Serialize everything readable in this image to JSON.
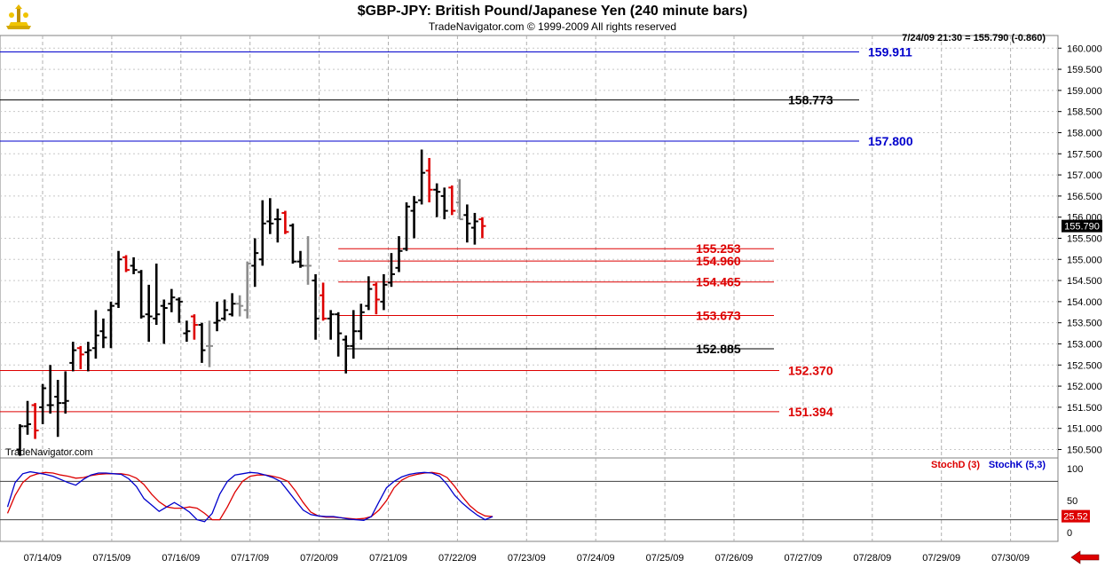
{
  "header": {
    "title": "$GBP-JPY:  British Pound/Japanese Yen  (240 minute bars)",
    "subtitle": "TradeNavigator.com © 1999-2009 All rights reserved",
    "last_quote": "7/24/09 21:30 = 155.790 (-0.860)",
    "watermark": "TradeNavigator.com"
  },
  "colors": {
    "up_bar": "#000000",
    "down_bar": "#dd0000",
    "neutral_bar": "#8c8c8c",
    "blue_level": "#0000cc",
    "red_level": "#dd0000",
    "stoch_d": "#dd0000",
    "stoch_k": "#0000cc"
  },
  "chart_data": [
    {
      "type": "ohlc",
      "title": "$GBP-JPY:  British Pound/Japanese Yen  (240 minute bars)",
      "x_tick_labels": [
        "07/14/09",
        "07/15/09",
        "07/16/09",
        "07/17/09",
        "07/20/09",
        "07/21/09",
        "07/22/09",
        "07/23/09",
        "07/24/09",
        "07/25/09",
        "07/26/09",
        "07/27/09",
        "07/28/09",
        "07/29/09",
        "07/30/09"
      ],
      "ylim": [
        150.3,
        160.3
      ],
      "y_ticks": [
        "150.500",
        "151.000",
        "151.500",
        "152.000",
        "152.500",
        "153.000",
        "153.500",
        "154.000",
        "154.500",
        "155.000",
        "155.500",
        "156.000",
        "156.500",
        "157.000",
        "157.500",
        "158.000",
        "158.500",
        "159.000",
        "159.500",
        "160.000"
      ],
      "last_price_label": "155.790",
      "grid": true,
      "bars": [
        {
          "x": 0,
          "o": 150.5,
          "h": 151.1,
          "l": 150.35,
          "c": 151.05,
          "t": "u"
        },
        {
          "x": 1,
          "o": 151.05,
          "h": 151.65,
          "l": 150.85,
          "c": 151.1,
          "t": "u"
        },
        {
          "x": 2,
          "o": 151.55,
          "h": 151.6,
          "l": 150.75,
          "c": 150.95,
          "t": "d"
        },
        {
          "x": 3,
          "o": 151.5,
          "h": 152.05,
          "l": 151.1,
          "c": 151.95,
          "t": "u"
        },
        {
          "x": 4,
          "o": 151.55,
          "h": 152.5,
          "l": 151.35,
          "c": 151.55,
          "t": "u"
        },
        {
          "x": 5,
          "o": 151.75,
          "h": 152.15,
          "l": 150.8,
          "c": 151.6,
          "t": "u"
        },
        {
          "x": 6,
          "o": 151.6,
          "h": 152.35,
          "l": 151.35,
          "c": 151.65,
          "t": "u"
        },
        {
          "x": 7,
          "o": 152.55,
          "h": 153.05,
          "l": 152.35,
          "c": 152.85,
          "t": "u"
        },
        {
          "x": 8,
          "o": 152.9,
          "h": 152.95,
          "l": 152.4,
          "c": 152.75,
          "t": "d"
        },
        {
          "x": 9,
          "o": 152.8,
          "h": 153.05,
          "l": 152.35,
          "c": 152.85,
          "t": "u"
        },
        {
          "x": 10,
          "o": 152.9,
          "h": 153.8,
          "l": 152.65,
          "c": 153.2,
          "t": "u"
        },
        {
          "x": 11,
          "o": 153.3,
          "h": 153.6,
          "l": 152.9,
          "c": 153.15,
          "t": "u"
        },
        {
          "x": 12,
          "o": 153.8,
          "h": 154.0,
          "l": 152.9,
          "c": 153.9,
          "t": "u"
        },
        {
          "x": 13,
          "o": 153.95,
          "h": 155.2,
          "l": 153.85,
          "c": 155.0,
          "t": "u"
        },
        {
          "x": 14,
          "o": 155.05,
          "h": 155.1,
          "l": 154.7,
          "c": 154.75,
          "t": "d"
        },
        {
          "x": 15,
          "o": 154.85,
          "h": 155.05,
          "l": 154.65,
          "c": 154.75,
          "t": "u"
        },
        {
          "x": 16,
          "o": 154.7,
          "h": 154.75,
          "l": 153.6,
          "c": 153.65,
          "t": "u"
        },
        {
          "x": 17,
          "o": 153.7,
          "h": 154.4,
          "l": 153.05,
          "c": 153.65,
          "t": "u"
        },
        {
          "x": 18,
          "o": 153.6,
          "h": 154.9,
          "l": 153.45,
          "c": 153.7,
          "t": "u"
        },
        {
          "x": 19,
          "o": 153.9,
          "h": 154.05,
          "l": 153.0,
          "c": 153.85,
          "t": "u"
        },
        {
          "x": 20,
          "o": 153.95,
          "h": 154.3,
          "l": 153.75,
          "c": 154.1,
          "t": "u"
        },
        {
          "x": 21,
          "o": 154.05,
          "h": 154.1,
          "l": 153.5,
          "c": 154.0,
          "t": "u"
        },
        {
          "x": 22,
          "o": 153.25,
          "h": 153.55,
          "l": 153.05,
          "c": 153.3,
          "t": "u"
        },
        {
          "x": 23,
          "o": 153.65,
          "h": 153.7,
          "l": 153.1,
          "c": 153.45,
          "t": "d"
        },
        {
          "x": 24,
          "o": 153.45,
          "h": 153.5,
          "l": 152.55,
          "c": 152.85,
          "t": "u"
        },
        {
          "x": 25,
          "o": 152.95,
          "h": 153.55,
          "l": 152.45,
          "c": 152.95,
          "t": "n"
        },
        {
          "x": 26,
          "o": 153.5,
          "h": 154.0,
          "l": 153.3,
          "c": 153.55,
          "t": "u"
        },
        {
          "x": 27,
          "o": 153.6,
          "h": 154.05,
          "l": 153.55,
          "c": 153.8,
          "t": "u"
        },
        {
          "x": 28,
          "o": 153.7,
          "h": 154.2,
          "l": 153.65,
          "c": 153.95,
          "t": "u"
        },
        {
          "x": 29,
          "o": 153.95,
          "h": 154.15,
          "l": 153.65,
          "c": 153.9,
          "t": "n"
        },
        {
          "x": 30,
          "o": 153.8,
          "h": 154.95,
          "l": 153.6,
          "c": 154.9,
          "t": "n"
        },
        {
          "x": 31,
          "o": 154.85,
          "h": 155.5,
          "l": 154.35,
          "c": 155.15,
          "t": "u"
        },
        {
          "x": 32,
          "o": 155.0,
          "h": 156.4,
          "l": 154.85,
          "c": 155.85,
          "t": "u"
        },
        {
          "x": 33,
          "o": 155.9,
          "h": 156.45,
          "l": 155.6,
          "c": 155.85,
          "t": "u"
        },
        {
          "x": 34,
          "o": 155.95,
          "h": 156.2,
          "l": 155.4,
          "c": 155.95,
          "t": "u"
        },
        {
          "x": 35,
          "o": 156.1,
          "h": 156.15,
          "l": 155.6,
          "c": 155.65,
          "t": "d"
        },
        {
          "x": 36,
          "o": 155.8,
          "h": 155.85,
          "l": 154.9,
          "c": 154.95,
          "t": "u"
        },
        {
          "x": 37,
          "o": 154.95,
          "h": 155.2,
          "l": 154.8,
          "c": 154.85,
          "t": "u"
        },
        {
          "x": 38,
          "o": 154.85,
          "h": 155.55,
          "l": 154.4,
          "c": 154.85,
          "t": "n"
        },
        {
          "x": 39,
          "o": 154.5,
          "h": 154.65,
          "l": 153.1,
          "c": 153.6,
          "t": "u"
        },
        {
          "x": 40,
          "o": 154.15,
          "h": 154.45,
          "l": 153.55,
          "c": 153.6,
          "t": "d"
        },
        {
          "x": 41,
          "o": 153.6,
          "h": 153.8,
          "l": 153.1,
          "c": 153.7,
          "t": "u"
        },
        {
          "x": 42,
          "o": 153.7,
          "h": 153.75,
          "l": 152.7,
          "c": 153.25,
          "t": "u"
        },
        {
          "x": 43,
          "o": 153.1,
          "h": 153.2,
          "l": 152.3,
          "c": 152.95,
          "t": "u"
        },
        {
          "x": 44,
          "o": 152.95,
          "h": 153.8,
          "l": 152.65,
          "c": 153.3,
          "t": "u"
        },
        {
          "x": 45,
          "o": 153.3,
          "h": 153.95,
          "l": 153.1,
          "c": 153.75,
          "t": "u"
        },
        {
          "x": 46,
          "o": 153.9,
          "h": 154.6,
          "l": 153.8,
          "c": 154.3,
          "t": "u"
        },
        {
          "x": 47,
          "o": 154.4,
          "h": 154.45,
          "l": 153.7,
          "c": 154.05,
          "t": "d"
        },
        {
          "x": 48,
          "o": 154.0,
          "h": 154.65,
          "l": 153.8,
          "c": 154.4,
          "t": "u"
        },
        {
          "x": 49,
          "o": 154.45,
          "h": 155.15,
          "l": 154.35,
          "c": 154.65,
          "t": "u"
        },
        {
          "x": 50,
          "o": 154.8,
          "h": 155.55,
          "l": 154.7,
          "c": 155.2,
          "t": "u"
        },
        {
          "x": 51,
          "o": 155.25,
          "h": 156.35,
          "l": 155.2,
          "c": 156.25,
          "t": "u"
        },
        {
          "x": 52,
          "o": 156.15,
          "h": 156.5,
          "l": 155.5,
          "c": 156.35,
          "t": "u"
        },
        {
          "x": 53,
          "o": 156.4,
          "h": 157.6,
          "l": 156.3,
          "c": 157.05,
          "t": "u"
        },
        {
          "x": 54,
          "o": 157.1,
          "h": 157.4,
          "l": 156.35,
          "c": 156.65,
          "t": "d"
        },
        {
          "x": 55,
          "o": 156.65,
          "h": 156.8,
          "l": 156.0,
          "c": 156.6,
          "t": "u"
        },
        {
          "x": 56,
          "o": 156.5,
          "h": 156.7,
          "l": 155.95,
          "c": 156.15,
          "t": "u"
        },
        {
          "x": 57,
          "o": 156.7,
          "h": 156.75,
          "l": 156.05,
          "c": 156.15,
          "t": "d"
        },
        {
          "x": 58,
          "o": 156.35,
          "h": 156.9,
          "l": 155.95,
          "c": 155.95,
          "t": "n"
        },
        {
          "x": 59,
          "o": 156.05,
          "h": 156.3,
          "l": 155.4,
          "c": 155.85,
          "t": "u"
        },
        {
          "x": 60,
          "o": 155.75,
          "h": 156.1,
          "l": 155.35,
          "c": 155.9,
          "t": "u"
        },
        {
          "x": 61,
          "o": 155.95,
          "h": 156.0,
          "l": 155.5,
          "c": 155.79,
          "t": "d"
        }
      ],
      "levels": [
        {
          "value": 159.911,
          "label": "159.911",
          "color": "#0000cc",
          "start_bar": -1
        },
        {
          "value": 158.773,
          "label": "158.773",
          "color": "#000000",
          "start_bar": -1
        },
        {
          "value": 157.8,
          "label": "157.800",
          "color": "#0000cc",
          "start_bar": -1
        },
        {
          "value": 155.253,
          "label": "155.253",
          "color": "#dd0000",
          "start_bar": 42
        },
        {
          "value": 154.96,
          "label": "154.960",
          "color": "#dd0000",
          "start_bar": 42
        },
        {
          "value": 154.465,
          "label": "154.465",
          "color": "#dd0000",
          "start_bar": 42
        },
        {
          "value": 153.673,
          "label": "153.673",
          "color": "#dd0000",
          "start_bar": 42
        },
        {
          "value": 152.885,
          "label": "152.885",
          "color": "#000000",
          "start_bar": 43
        },
        {
          "value": 152.37,
          "label": "152.370",
          "color": "#dd0000",
          "start_bar": -1
        },
        {
          "value": 151.394,
          "label": "151.394",
          "color": "#dd0000",
          "start_bar": -1
        }
      ]
    },
    {
      "type": "line",
      "ylim": [
        0,
        100
      ],
      "y_ticks": [
        "100",
        "50",
        "0"
      ],
      "reference_lines": [
        80,
        20
      ],
      "last_value_label": "25.52",
      "series": [
        {
          "name": "StochD (3)",
          "color": "#dd0000",
          "values": [
            30,
            58,
            78,
            88,
            92,
            94,
            93,
            90,
            88,
            85,
            86,
            89,
            91,
            92,
            92,
            92,
            90,
            85,
            75,
            60,
            48,
            40,
            38,
            38,
            40,
            38,
            30,
            20,
            20,
            40,
            63,
            80,
            88,
            90,
            90,
            88,
            85,
            80,
            65,
            47,
            32,
            26,
            24,
            24,
            23,
            22,
            21,
            22,
            25,
            35,
            50,
            70,
            82,
            88,
            91,
            93,
            94,
            92,
            86,
            72,
            56,
            42,
            32,
            26,
            25
          ]
        },
        {
          "name": "StochK (5,3)",
          "color": "#0000cc",
          "values": [
            40,
            78,
            92,
            95,
            93,
            91,
            88,
            83,
            78,
            74,
            83,
            90,
            93,
            93,
            92,
            91,
            84,
            72,
            53,
            43,
            33,
            40,
            47,
            40,
            32,
            20,
            17,
            30,
            60,
            80,
            90,
            92,
            94,
            93,
            90,
            86,
            80,
            65,
            50,
            35,
            28,
            26,
            25,
            25,
            23,
            21,
            20,
            19,
            25,
            48,
            70,
            80,
            87,
            91,
            93,
            94,
            93,
            88,
            75,
            58,
            46,
            36,
            27,
            20,
            25
          ]
        }
      ]
    }
  ],
  "navigation": {
    "scroll_arrow": "left-arrow-icon"
  }
}
